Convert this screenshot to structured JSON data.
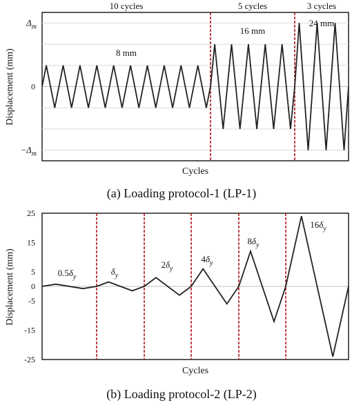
{
  "chart_data": [
    {
      "type": "line",
      "caption": "(a) Loading protocol-1 (LP-1)",
      "xlabel": "Cycles",
      "ylabel": "Displacement (mm)",
      "ylim": [
        -28,
        28
      ],
      "y_ticks": [
        {
          "label": "Δ",
          "sub": "m",
          "value": 24,
          "prefix": ""
        },
        {
          "label": "0",
          "sub": "",
          "value": 0,
          "prefix": ""
        },
        {
          "label": "Δ",
          "sub": "m",
          "value": -24,
          "prefix": "−"
        }
      ],
      "gridlines": [
        -24,
        -16,
        -8,
        0,
        8,
        16,
        24
      ],
      "stages": [
        {
          "cycles": 10,
          "amplitude": 8,
          "cycle_label": "10 cycles",
          "amp_label": "8 mm"
        },
        {
          "cycles": 5,
          "amplitude": 16,
          "cycle_label": "5 cycles",
          "amp_label": "16 mm"
        },
        {
          "cycles": 3,
          "amplitude": 24,
          "cycle_label": "3 cycles",
          "amp_label": "24 mm"
        }
      ],
      "colors": {
        "line": "#222222",
        "divider": "#b0141c",
        "grid": "#d9d9d9"
      }
    },
    {
      "type": "line",
      "caption": "(b) Loading protocol-2 (LP-2)",
      "xlabel": "Cycles",
      "ylabel": "Displacement (mm)",
      "ylim": [
        -25,
        25
      ],
      "y_ticks": [
        25,
        15,
        5,
        0,
        -5,
        -15,
        -25
      ],
      "y_tick_labels": [
        "25",
        "15",
        "5",
        "0",
        "-5",
        "-15",
        "-25"
      ],
      "stages": [
        {
          "amp_label": "0.5",
          "sym": "δ",
          "sub": "y",
          "amplitude": 0.75
        },
        {
          "amp_label": "",
          "sym": "δ",
          "sub": "y",
          "amplitude": 1.5
        },
        {
          "amp_label": "2",
          "sym": "δ",
          "sub": "y",
          "amplitude": 3
        },
        {
          "amp_label": "4",
          "sym": "δ",
          "sub": "y",
          "amplitude": 6
        },
        {
          "amp_label": "8",
          "sym": "δ",
          "sub": "y",
          "amplitude": 12
        },
        {
          "amp_label": "16",
          "sym": "δ",
          "sub": "y",
          "amplitude": 24
        }
      ],
      "colors": {
        "line": "#222222",
        "divider": "#b0141c",
        "zero": "#bdbdbd"
      }
    }
  ]
}
